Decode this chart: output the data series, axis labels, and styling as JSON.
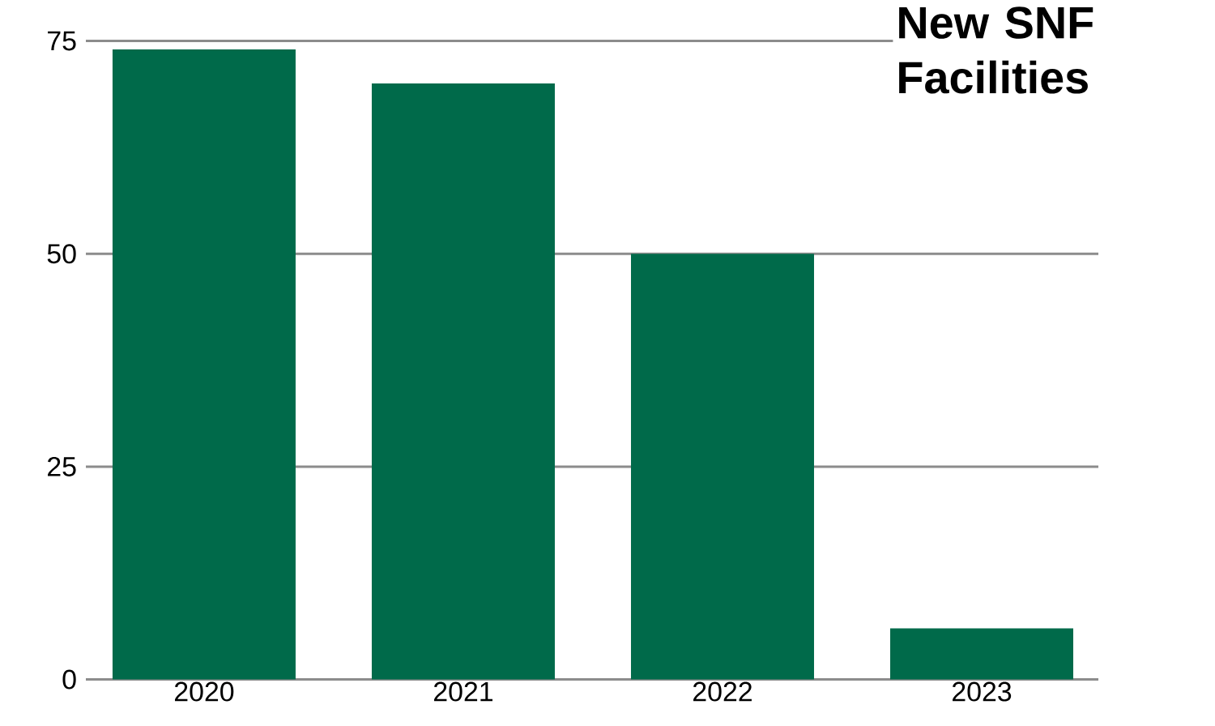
{
  "chart_data": {
    "type": "bar",
    "title": "New SNF Facilities",
    "categories": [
      "2020",
      "2021",
      "2022",
      "2023"
    ],
    "values": [
      74,
      70,
      50,
      6
    ],
    "color": "#006a4a",
    "ylim": [
      0,
      75
    ],
    "yticks": [
      0,
      25,
      50,
      75
    ],
    "grid": "y"
  }
}
